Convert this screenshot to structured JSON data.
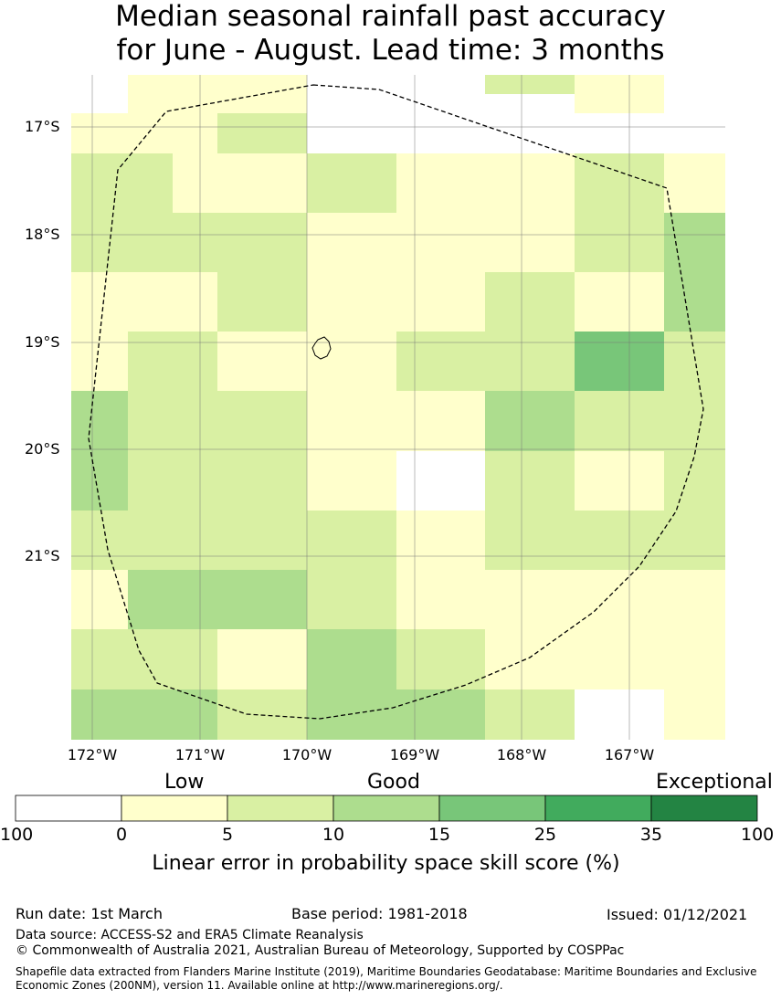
{
  "title": {
    "line1": "Median seasonal rainfall past accuracy",
    "line2": "for June - August. Lead time: 3 months"
  },
  "map": {
    "lat_labels": [
      "17°S",
      "18°S",
      "19°S",
      "20°S",
      "21°S"
    ],
    "lon_labels": [
      "172°W",
      "171°W",
      "170°W",
      "169°W",
      "168°W",
      "167°W"
    ],
    "category_colors": {
      "none": "#ffffff",
      "c0_5": "#ffffcc",
      "c5_10": "#d9f0a3",
      "c10_15": "#addd8e",
      "c15_25": "#78c679",
      "c25_35": "#41ab5d",
      "c35_100": "#238443"
    },
    "grid": [
      [
        "none",
        "c0_5",
        "c0_5",
        "c0_5",
        "c0_5",
        "none",
        "none",
        "none",
        "none",
        "none",
        "none",
        "c0_5",
        "c0_5",
        "none"
      ],
      [
        "none",
        "c0_5",
        "c0_5",
        "c0_5",
        "c0_5",
        "none",
        "none",
        "none",
        "none",
        "none",
        "none",
        "c0_5",
        "c0_5",
        "none"
      ],
      [
        "c0_5",
        "c0_5",
        "c0_5",
        "c5_10",
        "c5_10",
        "none",
        "none",
        "none",
        "none",
        "none",
        "none",
        "none",
        "none",
        "none"
      ],
      [
        "c5_10",
        "c5_10",
        "c0_5",
        "c0_5",
        "c0_5",
        "c5_10",
        "c5_10",
        "c0_5",
        "c0_5",
        "c0_5",
        "c0_5",
        "c5_10",
        "c5_10",
        "c0_5"
      ],
      [
        "c5_10",
        "c5_10",
        "c5_10",
        "c5_10",
        "c5_10",
        "c0_5",
        "c0_5",
        "c0_5",
        "c0_5",
        "c0_5",
        "c0_5",
        "c5_10",
        "c5_10",
        "c10_15"
      ],
      [
        "c0_5",
        "c0_5",
        "c0_5",
        "c5_10",
        "c5_10",
        "c0_5",
        "c0_5",
        "c0_5",
        "c0_5",
        "c5_10",
        "c5_10",
        "c0_5",
        "c0_5",
        "c10_15"
      ],
      [
        "c0_5",
        "c5_10",
        "c5_10",
        "c0_5",
        "c0_5",
        "c0_5",
        "c0_5",
        "c5_10",
        "c5_10",
        "c5_10",
        "c5_10",
        "c15_25",
        "c15_25",
        "c5_10"
      ],
      [
        "c10_15",
        "c5_10",
        "c5_10",
        "c5_10",
        "c5_10",
        "c0_5",
        "c0_5",
        "c0_5",
        "c0_5",
        "c10_15",
        "c10_15",
        "c5_10",
        "c5_10",
        "c5_10"
      ],
      [
        "c10_15",
        "c5_10",
        "c5_10",
        "c5_10",
        "c5_10",
        "c0_5",
        "c0_5",
        "none",
        "none",
        "c5_10",
        "c5_10",
        "c0_5",
        "c0_5",
        "c5_10"
      ],
      [
        "c5_10",
        "c5_10",
        "c5_10",
        "c5_10",
        "c5_10",
        "c5_10",
        "c5_10",
        "c0_5",
        "c0_5",
        "c5_10",
        "c5_10",
        "c5_10",
        "c5_10",
        "c5_10"
      ],
      [
        "c0_5",
        "c10_15",
        "c10_15",
        "c10_15",
        "c10_15",
        "c5_10",
        "c5_10",
        "c0_5",
        "c0_5",
        "c0_5",
        "c0_5",
        "c0_5",
        "c0_5",
        "c0_5"
      ],
      [
        "c5_10",
        "c5_10",
        "c5_10",
        "c0_5",
        "c0_5",
        "c10_15",
        "c10_15",
        "c5_10",
        "c5_10",
        "c0_5",
        "c0_5",
        "c0_5",
        "c0_5",
        "c0_5"
      ],
      [
        "c10_15",
        "c10_15",
        "c10_15",
        "c5_10",
        "c5_10",
        "c10_15",
        "c10_15",
        "c10_15",
        "c10_15",
        "c5_10",
        "c5_10",
        "none",
        "none",
        "c0_5"
      ]
    ],
    "overrides": [
      {
        "row": 0,
        "col": 9,
        "cat": "c5_10"
      },
      {
        "row": 0,
        "col": 10,
        "cat": "c5_10"
      }
    ]
  },
  "legend": {
    "categories": [
      "Low",
      "Good",
      "Exceptional"
    ],
    "segment_colors": [
      "#ffffff",
      "#ffffcc",
      "#d9f0a3",
      "#addd8e",
      "#78c679",
      "#41ab5d",
      "#238443"
    ],
    "ticks": [
      "100",
      "0",
      "5",
      "10",
      "15",
      "25",
      "35",
      "100"
    ],
    "title": "Linear error in probability space skill score (%)"
  },
  "footer": {
    "run_date": "Run date: 1st March",
    "base_period": "Base period: 1981-2018",
    "issued": "Issued: 01/12/2021",
    "data_source": "Data source: ACCESS-S2 and ERA5 Climate Reanalysis",
    "copyright": "© Commonwealth of Australia 2021, Australian Bureau of Meteorology, Supported by COSPPac",
    "shapefile": "Shapefile data extracted from Flanders Marine Institute (2019), Maritime Boundaries Geodatabase: Maritime Boundaries and Exclusive Economic Zones (200NM), version 11. Available online at http://www.marineregions.org/."
  }
}
